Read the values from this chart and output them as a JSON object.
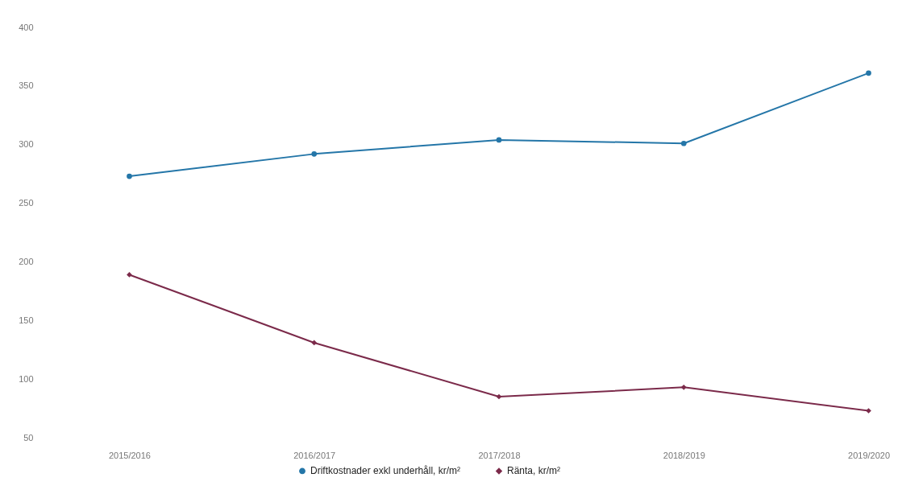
{
  "chart_data": {
    "type": "line",
    "categories": [
      "2015/2016",
      "2016/2017",
      "2017/2018",
      "2018/2019",
      "2019/2020"
    ],
    "series": [
      {
        "name": "Driftkostnader exkl underhåll, kr/m²",
        "color": "#2476a8",
        "marker": "circle",
        "values": [
          273,
          292,
          304,
          301,
          361
        ]
      },
      {
        "name": "Ränta, kr/m²",
        "color": "#7b2a4a",
        "marker": "diamond",
        "values": [
          189,
          131,
          85,
          93,
          73
        ]
      }
    ],
    "ylim": [
      50,
      400
    ],
    "yticks": [
      50,
      100,
      150,
      200,
      250,
      300,
      350,
      400
    ],
    "grid": false,
    "legend": "bottom"
  }
}
